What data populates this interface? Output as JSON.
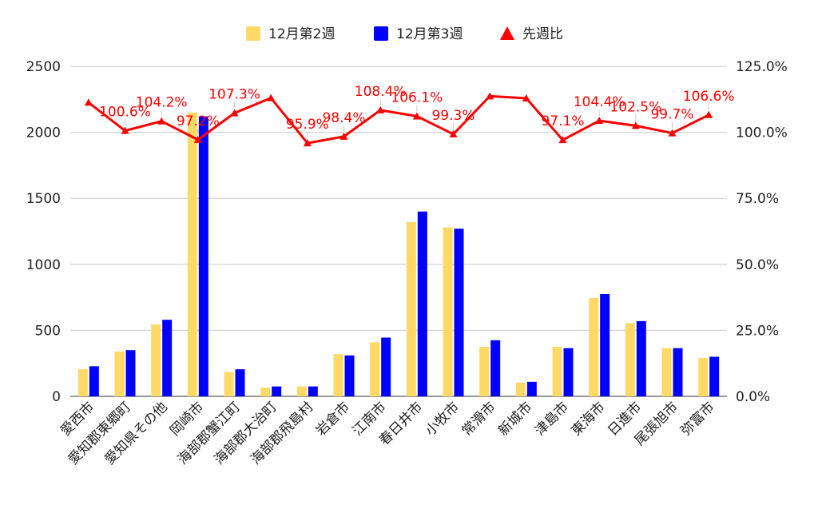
{
  "chart_data": {
    "type": "bar",
    "categories": [
      "愛西市",
      "愛知郡東郷町",
      "愛知県その他",
      "岡崎市",
      "海部郡蟹江町",
      "海部郡大治町",
      "海部郡飛島村",
      "岩倉市",
      "江南市",
      "春日井市",
      "小牧市",
      "常滑市",
      "新城市",
      "津島市",
      "東海市",
      "日進市",
      "尾張旭市",
      "弥富市"
    ],
    "series": [
      {
        "name": "12月第2週",
        "type": "bar",
        "color": "#ffd966",
        "values": [
          205,
          340,
          545,
          2150,
          185,
          65,
          75,
          320,
          410,
          1320,
          1280,
          375,
          105,
          375,
          745,
          555,
          365,
          290
        ]
      },
      {
        "name": "12月第3週",
        "type": "bar",
        "color": "#0000ff",
        "values": [
          228,
          350,
          580,
          2120,
          205,
          75,
          75,
          310,
          445,
          1400,
          1270,
          425,
          110,
          365,
          775,
          570,
          365,
          300
        ]
      },
      {
        "name": "先週比",
        "type": "line",
        "axis": "right",
        "color": "#ff0000",
        "values": [
          111.3,
          100.6,
          104.2,
          97.2,
          107.3,
          113.0,
          95.9,
          98.4,
          108.4,
          106.1,
          99.3,
          113.7,
          112.9,
          97.1,
          104.4,
          102.5,
          99.7,
          106.6
        ],
        "labels": [
          "",
          "100.6%",
          "104.2%",
          "97.2%",
          "107.3%",
          "",
          "95.9%",
          "98.4%",
          "108.4%",
          "106.1%",
          "99.3%",
          "",
          "",
          "97.1%",
          "104.4%",
          "102.5%",
          "99.7%",
          "106.6%"
        ]
      }
    ],
    "y_left": {
      "min": 0,
      "max": 2500,
      "ticks": [
        "0",
        "500",
        "1000",
        "1500",
        "2000",
        "2500"
      ]
    },
    "y_right": {
      "min": 0,
      "max": 125,
      "ticks": [
        "0.0%",
        "25.0%",
        "50.0%",
        "75.0%",
        "100.0%",
        "125.0%"
      ]
    },
    "grid": true,
    "legend_position": "top"
  }
}
